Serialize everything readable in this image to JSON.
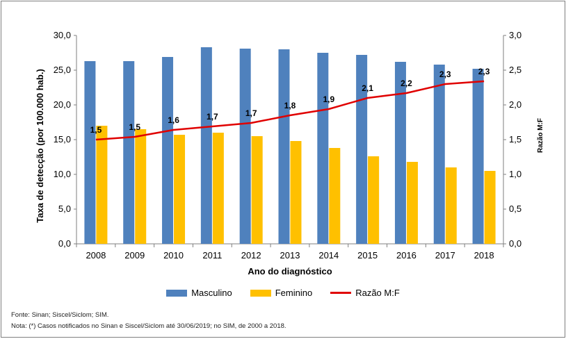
{
  "chart_data": {
    "type": "bar",
    "categories": [
      "2008",
      "2009",
      "2010",
      "2011",
      "2012",
      "2013",
      "2014",
      "2015",
      "2016",
      "2017",
      "2018"
    ],
    "series": [
      {
        "name": "Masculino",
        "type": "bar",
        "axis": "left",
        "color": "#4f81bd",
        "values": [
          26.3,
          26.3,
          26.9,
          28.3,
          28.1,
          28.0,
          27.5,
          27.2,
          26.2,
          25.8,
          25.2
        ]
      },
      {
        "name": "Feminino",
        "type": "bar",
        "axis": "left",
        "color": "#ffc000",
        "values": [
          17.0,
          16.5,
          15.7,
          16.0,
          15.5,
          14.8,
          13.8,
          12.6,
          11.8,
          11.0,
          10.5
        ]
      },
      {
        "name": "Razão M:F",
        "type": "line",
        "axis": "right",
        "color": "#e00000",
        "values": [
          1.5,
          1.54,
          1.64,
          1.69,
          1.74,
          1.85,
          1.94,
          2.1,
          2.17,
          2.3,
          2.34
        ],
        "data_labels": [
          "1,5",
          "1,5",
          "1,6",
          "1,7",
          "1,7",
          "1,8",
          "1,9",
          "2,1",
          "2,2",
          "2,3",
          "2,3"
        ]
      }
    ],
    "xlabel": "Ano do diagnóstico",
    "ylabel": "Taxa de detecção (por 100.000 hab.)",
    "y2label": "Razão M:F",
    "ylim": [
      0,
      30
    ],
    "y2lim": [
      0,
      3
    ],
    "yticks": [
      "0,0",
      "5,0",
      "10,0",
      "15,0",
      "20,0",
      "25,0",
      "30,0"
    ],
    "y2ticks": [
      "0,0",
      "0,5",
      "1,0",
      "1,5",
      "2,0",
      "2,5",
      "3,0"
    ],
    "grid": false,
    "legend_position": "bottom"
  },
  "legend": [
    {
      "label": "Masculino",
      "color": "#4f81bd",
      "kind": "box"
    },
    {
      "label": "Feminino",
      "color": "#ffc000",
      "kind": "box"
    },
    {
      "label": "Razão M:F",
      "color": "#e00000",
      "kind": "line"
    }
  ],
  "notes": {
    "source": "Fonte: Sinan; Siscel/Siclom; SIM.",
    "note": "Nota: (*) Casos notificados no Sinan e Siscel/Siclom até 30/06/2019; no SIM, de 2000 a 2018."
  }
}
